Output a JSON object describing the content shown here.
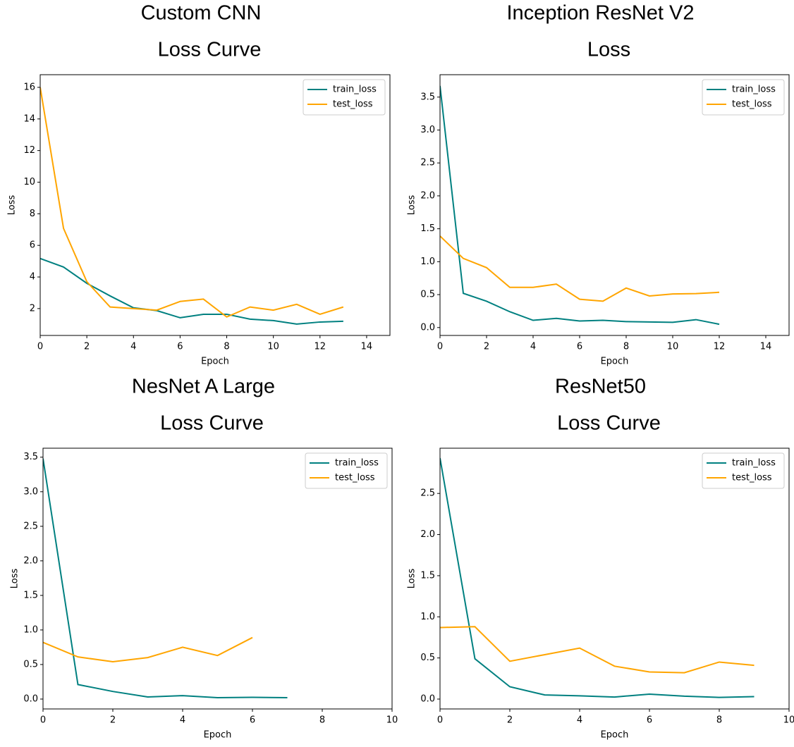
{
  "chart_data": [
    {
      "type": "line",
      "title": "Custom CNN",
      "subtitle": "Loss Curve",
      "x_label": "Epoch",
      "y_label": "Loss",
      "x": [
        0,
        1,
        2,
        3,
        4,
        5,
        6,
        7,
        8,
        9,
        10,
        11,
        12,
        13
      ],
      "series": [
        {
          "name": "train_loss",
          "color": "#008080",
          "values": [
            5.17,
            4.63,
            3.6,
            2.8,
            2.05,
            1.87,
            1.42,
            1.64,
            1.64,
            1.33,
            1.24,
            1.02,
            1.15,
            1.2
          ]
        },
        {
          "name": "test_loss",
          "color": "#ffa500",
          "values": [
            16,
            7.08,
            3.7,
            2.1,
            2.0,
            1.9,
            2.45,
            2.6,
            1.47,
            2.1,
            1.9,
            2.27,
            1.64,
            2.1
          ]
        }
      ],
      "xlim": [
        0,
        15
      ],
      "xticks": [
        0,
        2,
        4,
        6,
        8,
        10,
        12,
        14
      ],
      "ylim": [
        0.3,
        16.8
      ],
      "yticks": [
        2,
        4,
        6,
        8,
        10,
        12,
        14,
        16
      ],
      "legend": "upper right"
    },
    {
      "type": "line",
      "title": "Inception ResNet V2",
      "subtitle": "Loss",
      "x_label": "Epoch",
      "y_label": "Loss",
      "x": [
        0,
        1,
        2,
        3,
        4,
        5,
        6,
        7,
        8,
        9,
        10,
        11,
        12
      ],
      "series": [
        {
          "name": "train_loss",
          "color": "#008080",
          "values": [
            3.67,
            0.52,
            0.4,
            0.24,
            0.11,
            0.14,
            0.1,
            0.11,
            0.09,
            0.085,
            0.08,
            0.12,
            0.05
          ]
        },
        {
          "name": "test_loss",
          "color": "#ffa500",
          "values": [
            1.39,
            1.05,
            0.91,
            0.61,
            0.61,
            0.66,
            0.43,
            0.4,
            0.6,
            0.48,
            0.51,
            0.515,
            0.535
          ]
        }
      ],
      "xlim": [
        0,
        15
      ],
      "xticks": [
        0,
        2,
        4,
        6,
        8,
        10,
        12,
        14
      ],
      "ylim": [
        -0.12,
        3.84
      ],
      "yticks": [
        {
          "value": 0,
          "label": "0.0"
        },
        0.5,
        {
          "value": 1,
          "label": "1.0"
        },
        1.5,
        {
          "value": 2,
          "label": "2.0"
        },
        2.5,
        {
          "value": 3,
          "label": "3.0"
        },
        3.5
      ],
      "legend": "upper right"
    },
    {
      "type": "line",
      "title": "NesNet A Large",
      "subtitle": "Loss Curve",
      "x_label": "Epoch",
      "y_label": "Loss",
      "x": [
        0,
        1,
        2,
        3,
        4,
        5,
        6,
        7
      ],
      "series": [
        {
          "name": "train_loss",
          "color": "#008080",
          "values": [
            3.48,
            0.21,
            0.11,
            0.03,
            0.05,
            0.02,
            0.025,
            0.02
          ]
        },
        {
          "name": "test_loss",
          "color": "#ffa500",
          "values": [
            0.82,
            0.61,
            0.54,
            0.6,
            0.75,
            0.63,
            0.89,
            null
          ]
        }
      ],
      "xlim": [
        0,
        10
      ],
      "xticks": [
        0,
        2,
        4,
        6,
        8,
        10
      ],
      "ylim": [
        -0.143,
        3.63
      ],
      "yticks": [
        {
          "value": 0,
          "label": "0.0"
        },
        0.5,
        {
          "value": 1,
          "label": "1.0"
        },
        1.5,
        {
          "value": 2,
          "label": "2.0"
        },
        2.5,
        {
          "value": 3,
          "label": "3.0"
        },
        3.5
      ],
      "legend": "upper right"
    },
    {
      "type": "line",
      "title": "ResNet50",
      "subtitle": "Loss Curve",
      "x_label": "Epoch",
      "y_label": "Loss",
      "x": [
        0,
        1,
        2,
        3,
        4,
        5,
        6,
        7,
        8,
        9
      ],
      "series": [
        {
          "name": "train_loss",
          "color": "#008080",
          "values": [
            2.93,
            0.49,
            0.15,
            0.05,
            0.04,
            0.025,
            0.06,
            0.035,
            0.02,
            0.03
          ]
        },
        {
          "name": "test_loss",
          "color": "#ffa500",
          "values": [
            0.87,
            0.88,
            0.46,
            0.54,
            0.62,
            0.4,
            0.33,
            0.32,
            0.45,
            0.41
          ]
        }
      ],
      "xlim": [
        0,
        10
      ],
      "xticks": [
        0,
        2,
        4,
        6,
        8,
        10
      ],
      "ylim": [
        -0.12,
        3.05
      ],
      "yticks": [
        {
          "value": 0,
          "label": "0.0"
        },
        0.5,
        {
          "value": 1,
          "label": "1.0"
        },
        1.5,
        {
          "value": 2,
          "label": "2.0"
        },
        2.5
      ],
      "legend": "upper right"
    }
  ]
}
